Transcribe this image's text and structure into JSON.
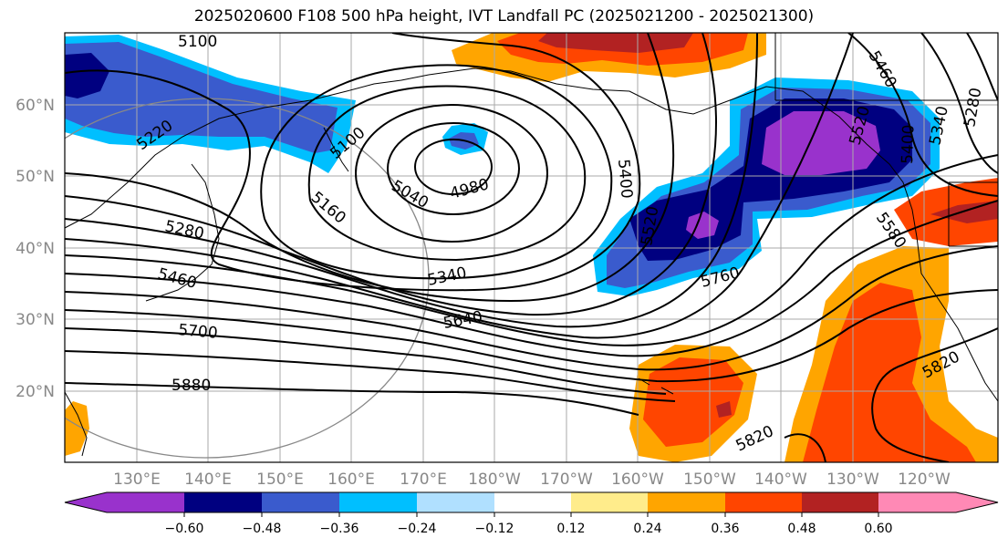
{
  "title": "2025020600 F108 500 hPa height, IVT Landfall PC (2025021200 - 2025021300)",
  "map": {
    "lat_labels": [
      "60°N",
      "50°N",
      "40°N",
      "30°N",
      "20°N"
    ],
    "lon_labels": [
      "130°E",
      "140°E",
      "150°E",
      "160°E",
      "170°E",
      "180°W",
      "170°W",
      "160°W",
      "150°W",
      "140°W",
      "130°W",
      "120°W"
    ],
    "contour_labels": [
      "5100",
      "5220",
      "5100",
      "5040",
      "4980",
      "5160",
      "5280",
      "5460",
      "5400",
      "5520",
      "5340",
      "5460",
      "5520",
      "5400",
      "5340",
      "5280",
      "5580",
      "5760",
      "5640",
      "5700",
      "5880",
      "5820",
      "5820"
    ]
  },
  "colorbar": {
    "tick_labels": [
      "−0.60",
      "−0.48",
      "−0.36",
      "−0.24",
      "−0.12",
      "0.12",
      "0.24",
      "0.36",
      "0.48",
      "0.60"
    ],
    "colors": [
      "#9932cc",
      "#000080",
      "#3a5bcd",
      "#00bfff",
      "#b0e0ff",
      "#ffffff",
      "#ffec8b",
      "#ffa500",
      "#ff4500",
      "#b22222",
      "#ff89b5"
    ]
  }
}
